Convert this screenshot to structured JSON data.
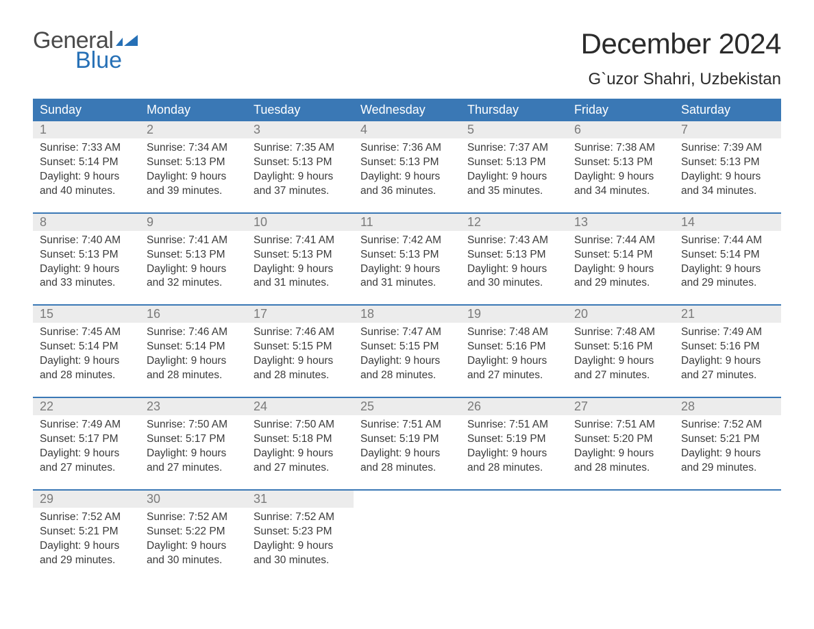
{
  "brand": {
    "part1": "General",
    "part2": "Blue",
    "color_general": "#4a4a4a",
    "color_blue": "#2670b6",
    "flag_color": "#2670b6"
  },
  "title": {
    "month_year": "December 2024",
    "location": "G`uzor Shahri, Uzbekistan",
    "title_fontsize": 42,
    "location_fontsize": 24,
    "title_color": "#2b2b2b"
  },
  "theme": {
    "header_bg": "#3a78b5",
    "header_text": "#ffffff",
    "daynum_bg": "#ececec",
    "daynum_color": "#7a7a7a",
    "body_text_color": "#3a3a3a",
    "week_border_color": "#3a78b5",
    "body_fontsize": 15.5,
    "weekday_fontsize": 18,
    "daynum_fontsize": 18,
    "background": "#ffffff"
  },
  "weekdays": [
    "Sunday",
    "Monday",
    "Tuesday",
    "Wednesday",
    "Thursday",
    "Friday",
    "Saturday"
  ],
  "labels": {
    "sunrise": "Sunrise: ",
    "sunset": "Sunset: ",
    "daylight_prefix": "Daylight: ",
    "and": "and ",
    "minutes_suffix": " minutes."
  },
  "weeks": [
    [
      {
        "n": "1",
        "sr": "7:33 AM",
        "ss": "5:14 PM",
        "dh": "9 hours",
        "dm": "40"
      },
      {
        "n": "2",
        "sr": "7:34 AM",
        "ss": "5:13 PM",
        "dh": "9 hours",
        "dm": "39"
      },
      {
        "n": "3",
        "sr": "7:35 AM",
        "ss": "5:13 PM",
        "dh": "9 hours",
        "dm": "37"
      },
      {
        "n": "4",
        "sr": "7:36 AM",
        "ss": "5:13 PM",
        "dh": "9 hours",
        "dm": "36"
      },
      {
        "n": "5",
        "sr": "7:37 AM",
        "ss": "5:13 PM",
        "dh": "9 hours",
        "dm": "35"
      },
      {
        "n": "6",
        "sr": "7:38 AM",
        "ss": "5:13 PM",
        "dh": "9 hours",
        "dm": "34"
      },
      {
        "n": "7",
        "sr": "7:39 AM",
        "ss": "5:13 PM",
        "dh": "9 hours",
        "dm": "34"
      }
    ],
    [
      {
        "n": "8",
        "sr": "7:40 AM",
        "ss": "5:13 PM",
        "dh": "9 hours",
        "dm": "33"
      },
      {
        "n": "9",
        "sr": "7:41 AM",
        "ss": "5:13 PM",
        "dh": "9 hours",
        "dm": "32"
      },
      {
        "n": "10",
        "sr": "7:41 AM",
        "ss": "5:13 PM",
        "dh": "9 hours",
        "dm": "31"
      },
      {
        "n": "11",
        "sr": "7:42 AM",
        "ss": "5:13 PM",
        "dh": "9 hours",
        "dm": "31"
      },
      {
        "n": "12",
        "sr": "7:43 AM",
        "ss": "5:13 PM",
        "dh": "9 hours",
        "dm": "30"
      },
      {
        "n": "13",
        "sr": "7:44 AM",
        "ss": "5:14 PM",
        "dh": "9 hours",
        "dm": "29"
      },
      {
        "n": "14",
        "sr": "7:44 AM",
        "ss": "5:14 PM",
        "dh": "9 hours",
        "dm": "29"
      }
    ],
    [
      {
        "n": "15",
        "sr": "7:45 AM",
        "ss": "5:14 PM",
        "dh": "9 hours",
        "dm": "28"
      },
      {
        "n": "16",
        "sr": "7:46 AM",
        "ss": "5:14 PM",
        "dh": "9 hours",
        "dm": "28"
      },
      {
        "n": "17",
        "sr": "7:46 AM",
        "ss": "5:15 PM",
        "dh": "9 hours",
        "dm": "28"
      },
      {
        "n": "18",
        "sr": "7:47 AM",
        "ss": "5:15 PM",
        "dh": "9 hours",
        "dm": "28"
      },
      {
        "n": "19",
        "sr": "7:48 AM",
        "ss": "5:16 PM",
        "dh": "9 hours",
        "dm": "27"
      },
      {
        "n": "20",
        "sr": "7:48 AM",
        "ss": "5:16 PM",
        "dh": "9 hours",
        "dm": "27"
      },
      {
        "n": "21",
        "sr": "7:49 AM",
        "ss": "5:16 PM",
        "dh": "9 hours",
        "dm": "27"
      }
    ],
    [
      {
        "n": "22",
        "sr": "7:49 AM",
        "ss": "5:17 PM",
        "dh": "9 hours",
        "dm": "27"
      },
      {
        "n": "23",
        "sr": "7:50 AM",
        "ss": "5:17 PM",
        "dh": "9 hours",
        "dm": "27"
      },
      {
        "n": "24",
        "sr": "7:50 AM",
        "ss": "5:18 PM",
        "dh": "9 hours",
        "dm": "27"
      },
      {
        "n": "25",
        "sr": "7:51 AM",
        "ss": "5:19 PM",
        "dh": "9 hours",
        "dm": "28"
      },
      {
        "n": "26",
        "sr": "7:51 AM",
        "ss": "5:19 PM",
        "dh": "9 hours",
        "dm": "28"
      },
      {
        "n": "27",
        "sr": "7:51 AM",
        "ss": "5:20 PM",
        "dh": "9 hours",
        "dm": "28"
      },
      {
        "n": "28",
        "sr": "7:52 AM",
        "ss": "5:21 PM",
        "dh": "9 hours",
        "dm": "29"
      }
    ],
    [
      {
        "n": "29",
        "sr": "7:52 AM",
        "ss": "5:21 PM",
        "dh": "9 hours",
        "dm": "29"
      },
      {
        "n": "30",
        "sr": "7:52 AM",
        "ss": "5:22 PM",
        "dh": "9 hours",
        "dm": "30"
      },
      {
        "n": "31",
        "sr": "7:52 AM",
        "ss": "5:23 PM",
        "dh": "9 hours",
        "dm": "30"
      },
      null,
      null,
      null,
      null
    ]
  ]
}
